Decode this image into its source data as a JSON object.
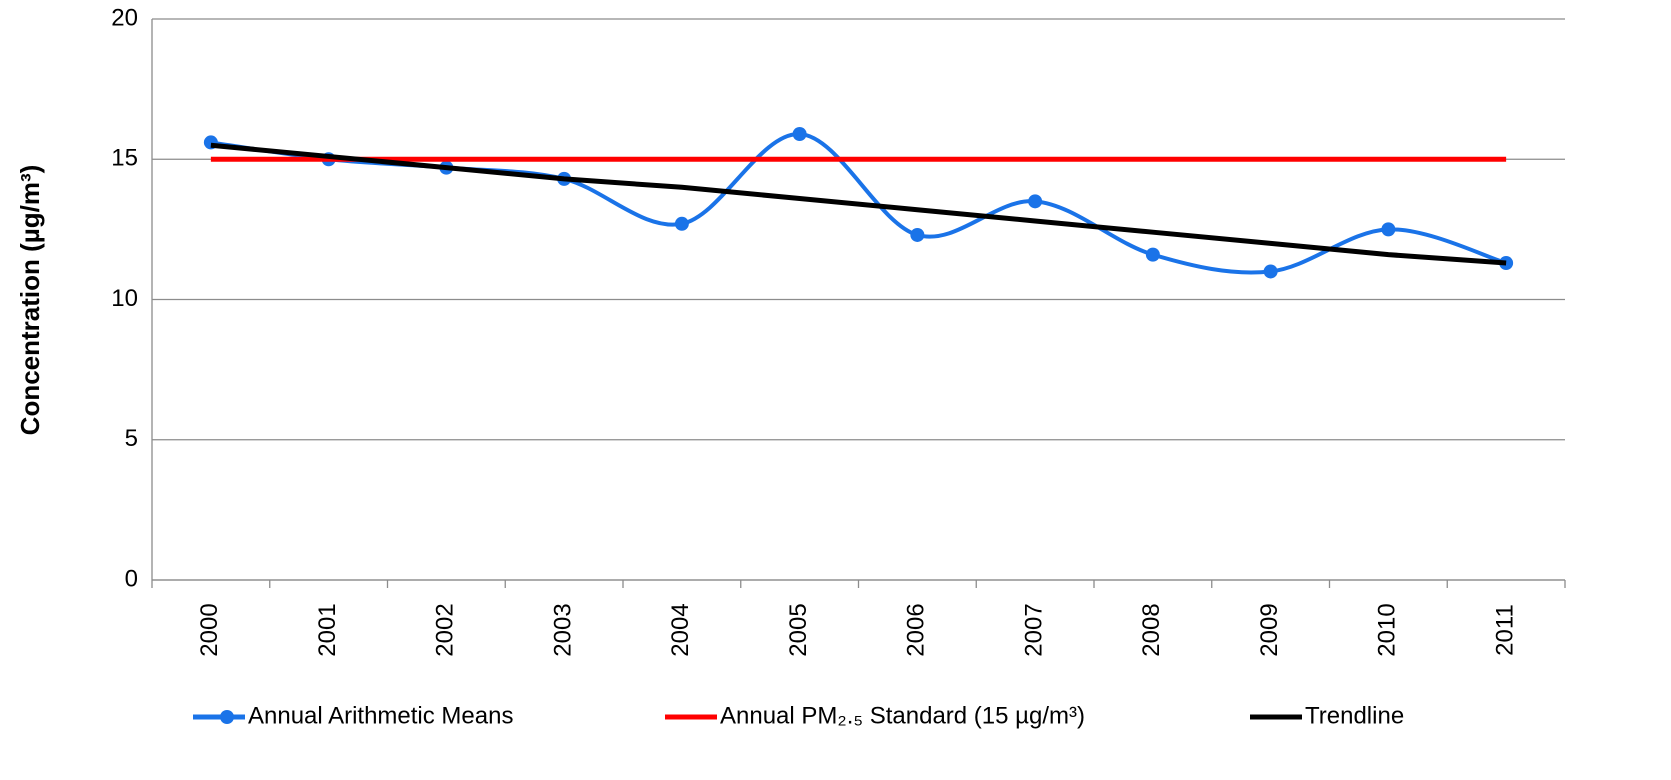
{
  "chart_data": {
    "type": "line",
    "y_label": "Concentration (µg/m³)",
    "categories": [
      "2000",
      "2001",
      "2002",
      "2003",
      "2004",
      "2005",
      "2006",
      "2007",
      "2008",
      "2009",
      "2010",
      "2011"
    ],
    "series": [
      {
        "name": "Annual Arithmetic Means",
        "color": "#1a73e8",
        "smooth": true,
        "markers": true,
        "values": [
          15.6,
          15.0,
          14.7,
          14.3,
          12.7,
          15.9,
          12.3,
          13.5,
          11.6,
          11.0,
          12.5,
          11.3
        ]
      },
      {
        "name": "Annual PM₂.₅ Standard (15 µg/m³)",
        "color": "#ff0000",
        "smooth": false,
        "markers": false,
        "values": [
          15,
          15,
          15,
          15,
          15,
          15,
          15,
          15,
          15,
          15,
          15,
          15
        ]
      },
      {
        "name": "Trendline",
        "color": "#000000",
        "smooth": false,
        "markers": false,
        "values": [
          15.5,
          15.1,
          14.7,
          14.3,
          14.0,
          13.6,
          13.2,
          12.8,
          12.4,
          12.0,
          11.6,
          11.3
        ]
      }
    ],
    "ylim": [
      0,
      20
    ],
    "yticks": [
      0,
      5,
      10,
      15,
      20
    ],
    "grid": true,
    "legend": "bottom"
  }
}
